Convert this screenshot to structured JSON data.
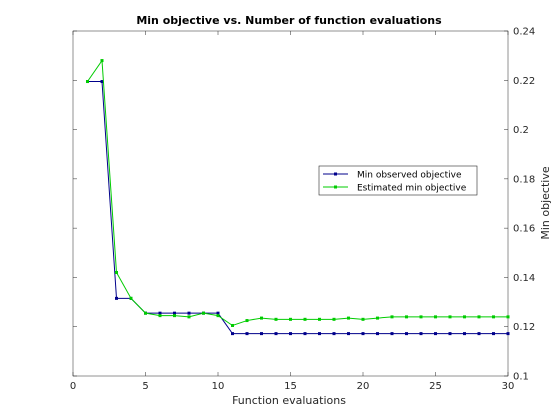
{
  "chart_data": {
    "type": "line",
    "title": "Min objective vs. Number of function evaluations",
    "xlabel": "Function evaluations",
    "ylabel": "Min objective",
    "xlim": [
      0,
      30
    ],
    "ylim": [
      0.1,
      0.24
    ],
    "xticks": [
      0,
      5,
      10,
      15,
      20,
      25,
      30
    ],
    "yticks": [
      0.1,
      0.12,
      0.14,
      0.16,
      0.18,
      0.2,
      0.22,
      0.24
    ],
    "ytick_labels": [
      "0.1",
      "0.12",
      "0.14",
      "0.16",
      "0.18",
      "0.2",
      "0.22",
      "0.24"
    ],
    "y_axis_side": "right",
    "grid": false,
    "legend_position": "right",
    "x": [
      1,
      2,
      3,
      4,
      5,
      6,
      7,
      8,
      9,
      10,
      11,
      12,
      13,
      14,
      15,
      16,
      17,
      18,
      19,
      20,
      21,
      22,
      23,
      24,
      25,
      26,
      27,
      28,
      29,
      30
    ],
    "series": [
      {
        "name": "Min observed objective",
        "color": "#00008b",
        "marker": "square",
        "values": [
          0.2195,
          0.2195,
          0.1315,
          0.1315,
          0.1255,
          0.1255,
          0.1255,
          0.1255,
          0.1255,
          0.1255,
          0.1172,
          0.1172,
          0.1172,
          0.1172,
          0.1172,
          0.1172,
          0.1172,
          0.1172,
          0.1172,
          0.1172,
          0.1172,
          0.1172,
          0.1172,
          0.1172,
          0.1172,
          0.1172,
          0.1172,
          0.1172,
          0.1172,
          0.1172
        ]
      },
      {
        "name": "Estimated min objective",
        "color": "#00cc00",
        "marker": "square",
        "values": [
          0.2195,
          0.228,
          0.142,
          0.1315,
          0.1255,
          0.1245,
          0.1245,
          0.124,
          0.1255,
          0.1245,
          0.1205,
          0.1225,
          0.1235,
          0.123,
          0.123,
          0.123,
          0.123,
          0.123,
          0.1235,
          0.123,
          0.1235,
          0.124,
          0.124,
          0.124,
          0.124,
          0.124,
          0.124,
          0.124,
          0.124,
          0.124
        ]
      }
    ]
  }
}
